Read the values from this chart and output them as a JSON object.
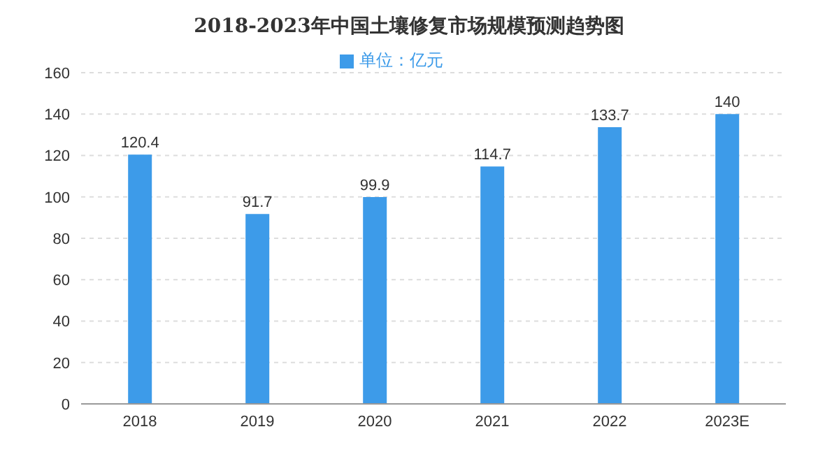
{
  "chart_data": {
    "type": "bar",
    "title": "2018-2023年中国土壤修复市场规模预测趋势图",
    "categories": [
      "2018",
      "2019",
      "2020",
      "2021",
      "2022",
      "2023E"
    ],
    "series": [
      {
        "name": "单位：亿元",
        "color": "#3d9be9",
        "values": [
          120.4,
          91.7,
          99.9,
          114.7,
          133.7,
          140
        ]
      }
    ],
    "ylim": [
      0,
      160
    ],
    "yticks": [
      0,
      20,
      40,
      60,
      80,
      100,
      120,
      140,
      160
    ],
    "grid": "y",
    "legend": "top",
    "data_labels": true
  }
}
